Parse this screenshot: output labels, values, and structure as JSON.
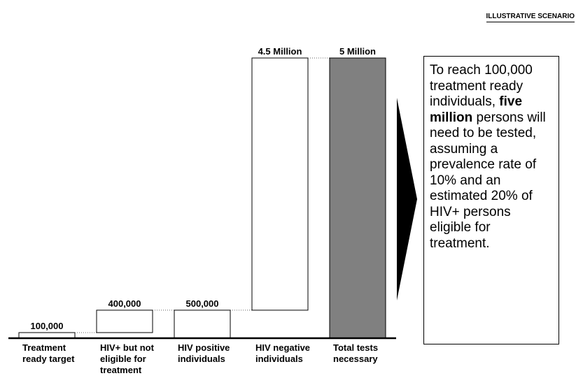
{
  "chart_data": {
    "type": "waterfall",
    "header": "ILLUSTRATIVE SCENARIO",
    "categories": [
      "Treatment ready target",
      "HIV+ but not eligible for treatment",
      "HIV positive individuals",
      "HIV negative individuals",
      "Total tests necessary"
    ],
    "values": [
      100000,
      400000,
      500000,
      4500000,
      5000000
    ],
    "value_labels": [
      "100,000",
      "400,000",
      "500,000",
      "4.5 Million",
      "5 Million"
    ],
    "measures": [
      "relative",
      "relative",
      "total",
      "relative",
      "total"
    ],
    "colors": [
      "#ffffff",
      "#ffffff",
      "#ffffff",
      "#ffffff",
      "#808080"
    ],
    "ylim": [
      0,
      5000000
    ],
    "annotation": [
      "To reach 100,000 treatment ready individuals, ",
      "five million",
      " persons will need to be tested, assuming a prevalence rate of 10% and an estimated 20% of HIV+ persons eligible for treatment."
    ]
  }
}
